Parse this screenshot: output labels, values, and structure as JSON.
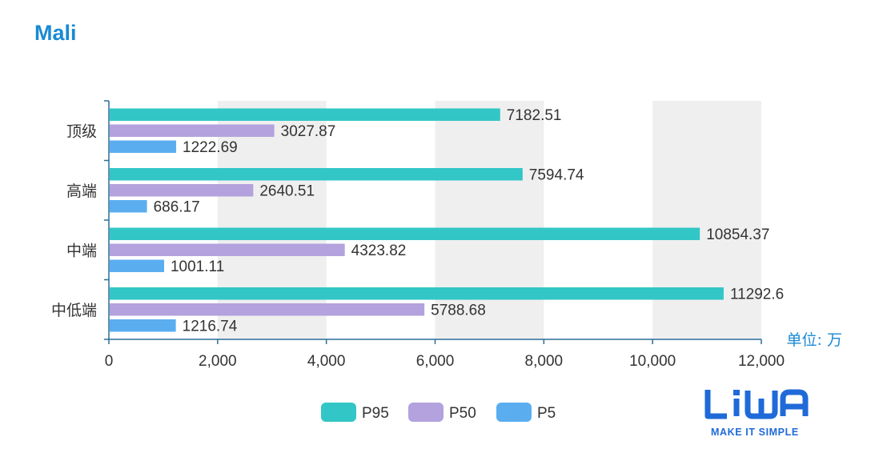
{
  "page_title": "Mali",
  "colors": {
    "title": "#1a8ad3",
    "P95": "#33c6c6",
    "P50": "#b3a2dd",
    "P5": "#5aaef0",
    "axis": "#2a6f97",
    "band": "#efefef",
    "unit": "#1a8ad3",
    "logo": "#1f6ad8"
  },
  "chart_data": {
    "type": "bar",
    "orientation": "horizontal",
    "categories": [
      "顶级",
      "高端",
      "中端",
      "中低端"
    ],
    "series": [
      {
        "name": "P95",
        "values": [
          7182.51,
          7594.74,
          10854.37,
          11292.6
        ],
        "labels": [
          "7182.51",
          "7594.74",
          "10854.37",
          "11292.6"
        ]
      },
      {
        "name": "P50",
        "values": [
          3027.87,
          2640.51,
          4323.82,
          5788.68
        ],
        "labels": [
          "3027.87",
          "2640.51",
          "4323.82",
          "5788.68"
        ]
      },
      {
        "name": "P5",
        "values": [
          1222.69,
          686.17,
          1001.11,
          1216.74
        ],
        "labels": [
          "1222.69",
          "686.17",
          "1001.11",
          "1216.74"
        ]
      }
    ],
    "xlim": [
      0,
      12000
    ],
    "x_ticks": [
      0,
      2000,
      4000,
      6000,
      8000,
      10000,
      12000
    ],
    "x_tick_labels": [
      "0",
      "2,000",
      "4,000",
      "6,000",
      "8,000",
      "10,000",
      "12,000"
    ],
    "unit_label": "单位: 万",
    "legend_position": "bottom-center",
    "grid": "alternating-bands"
  },
  "logo": {
    "name": "LiWA",
    "tagline": "MAKE IT SIMPLE"
  }
}
